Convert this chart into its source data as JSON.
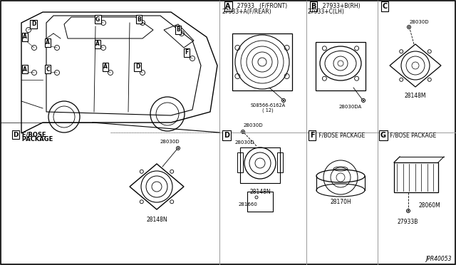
{
  "bg_color": "#ffffff",
  "line_color": "#000000",
  "grid_color": "#999999",
  "diagram_note": "JPR40053",
  "sec_A_parts": [
    "27933   (F/FRONT)",
    "27933+A(F/REAR)"
  ],
  "sec_A_bolt": "S08566-6162A",
  "sec_A_bolt2": "( 12)",
  "sec_B_parts": [
    "27933+B(RH)",
    "27933+C(LH)"
  ],
  "sec_B_bolt": "28030DA",
  "sec_C_bolt": "28030D",
  "sec_C_part": "28148M",
  "sec_D_bolt": "28030D",
  "sec_D_part": "28148N",
  "sec_D_part2": "281660",
  "sec_F_part": "28170H",
  "sec_G_part1": "28060M",
  "sec_G_part2": "27933B",
  "sec_D_bose_bolt": "28030D",
  "sec_D_bose_part": "28148N",
  "sec_D_bose_label": "F/BOSE\nPACKAGE"
}
